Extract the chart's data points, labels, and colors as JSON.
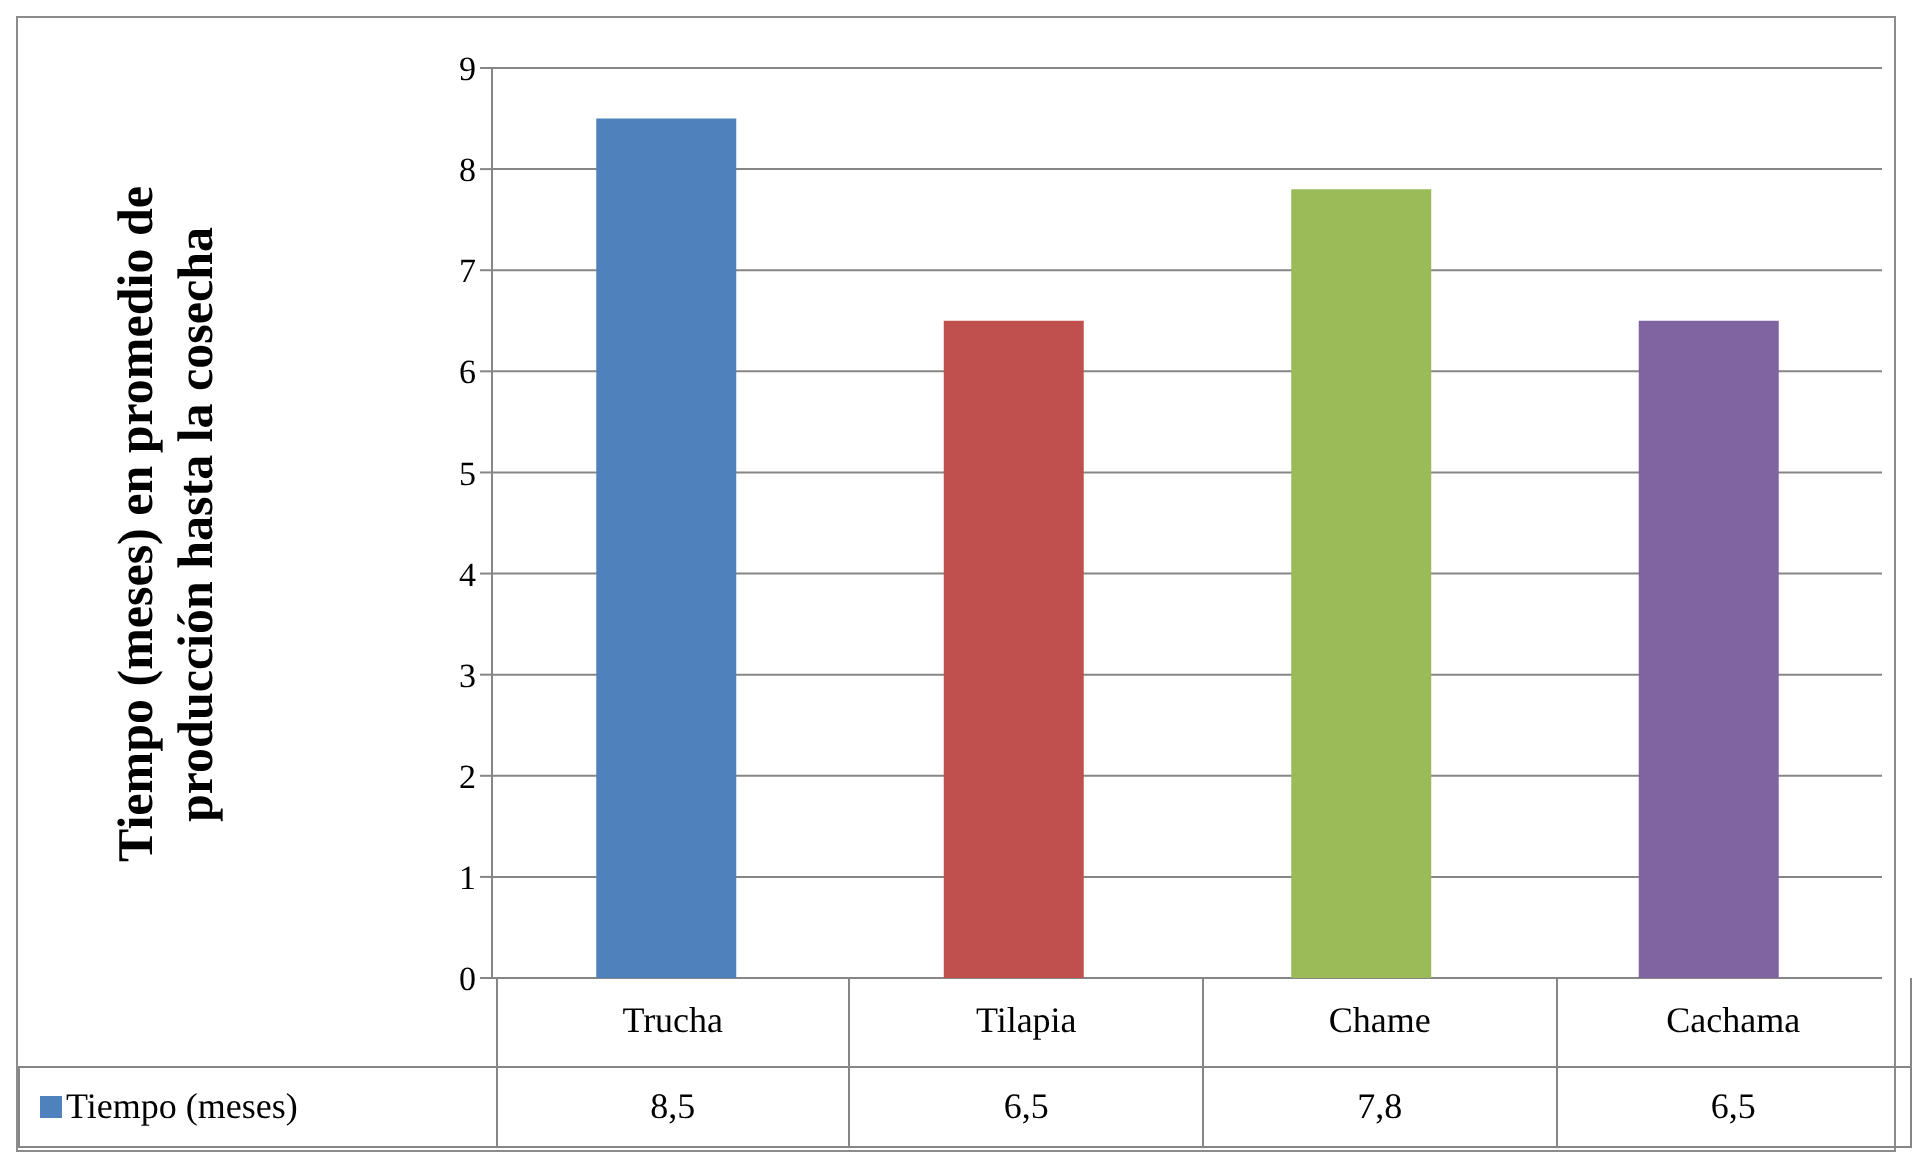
{
  "chart_data": {
    "type": "bar",
    "ylabel": "Tiempo (meses) en promedio de producción hasta la cosecha",
    "categories": [
      "Trucha",
      "Tilapia",
      "Chame",
      "Cachama"
    ],
    "series": [
      {
        "name": "Tiempo (meses)",
        "color": "#4f81bd",
        "colors": [
          "#4f81bd",
          "#c0504d",
          "#9bbb59",
          "#8064a2"
        ],
        "values": [
          8.5,
          6.5,
          7.8,
          6.5
        ],
        "value_labels": [
          "8,5",
          "6,5",
          "7,8",
          "6,5"
        ]
      }
    ],
    "ylim": [
      0,
      9
    ],
    "yticks": [
      0,
      1,
      2,
      3,
      4,
      5,
      6,
      7,
      8,
      9
    ],
    "grid": "y",
    "legend": "bottom"
  }
}
